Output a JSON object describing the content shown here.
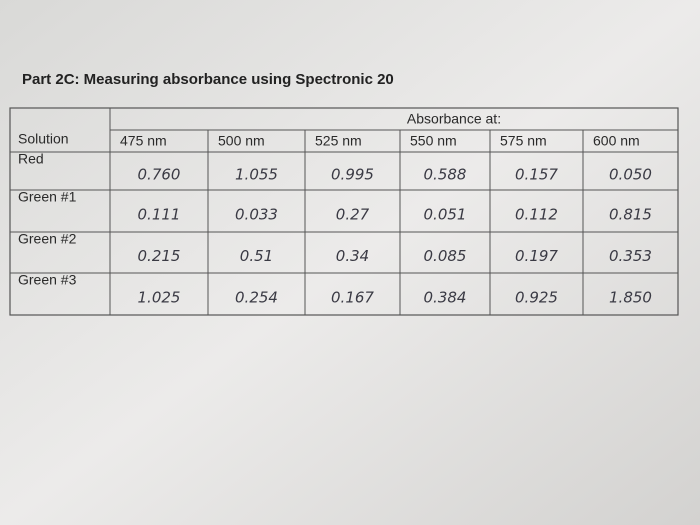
{
  "title": "Part 2C: Measuring absorbance using Spectronic 20",
  "table": {
    "header": {
      "solution": "Solution",
      "group": "Absorbance at:",
      "wavelengths": [
        "475 nm",
        "500 nm",
        "525 nm",
        "550 nm",
        "575 nm",
        "600 nm"
      ]
    },
    "rows": [
      {
        "label": "Red",
        "values": [
          "0.760",
          "1.055",
          "0.995",
          "0.588",
          "0.157",
          "0.050"
        ]
      },
      {
        "label": "Green #1",
        "values": [
          "0.111",
          "0.033",
          "0.27",
          "0.051",
          "0.112",
          "0.815"
        ]
      },
      {
        "label": "Green #2",
        "values": [
          "0.215",
          "0.51",
          "0.34",
          "0.085",
          "0.197",
          "0.353"
        ]
      },
      {
        "label": "Green #3",
        "values": [
          "1.025",
          "0.254",
          "0.167",
          "0.384",
          "0.925",
          "1.850"
        ]
      }
    ]
  }
}
